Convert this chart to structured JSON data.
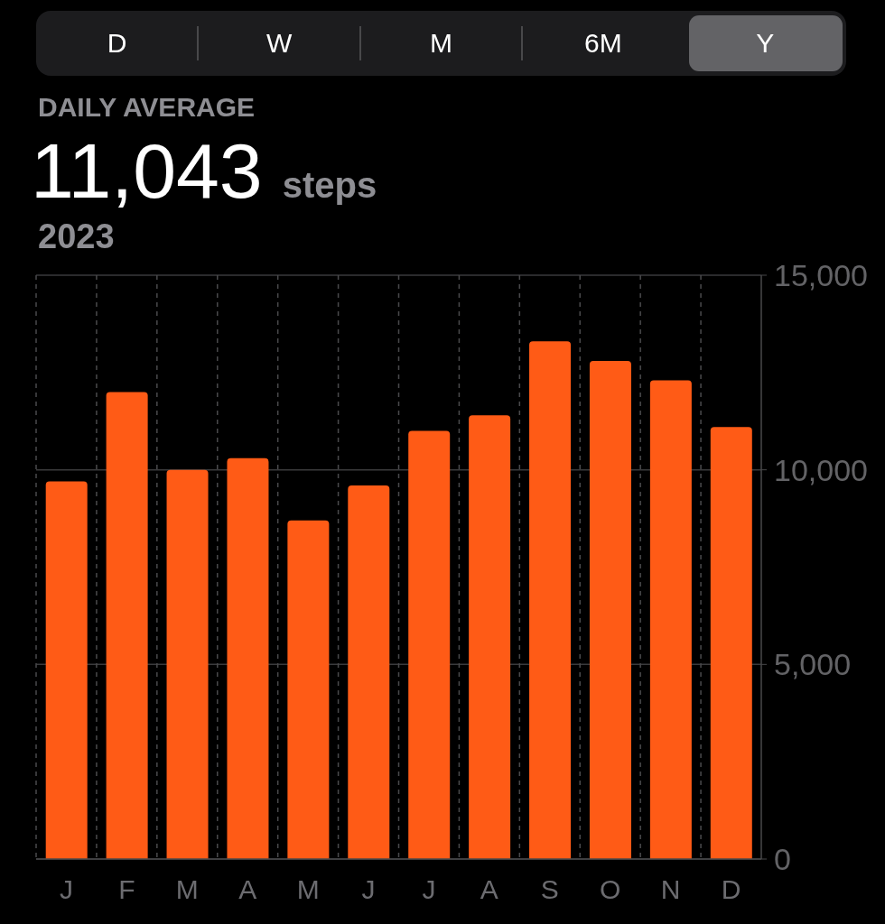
{
  "chart_data": {
    "type": "bar",
    "title": "DAILY AVERAGE",
    "subtitle": "2023",
    "annotations": [
      "D",
      "W",
      "M",
      "6M",
      "Y",
      "11,043",
      "steps"
    ],
    "categories": [
      "J",
      "F",
      "M",
      "A",
      "M",
      "J",
      "J",
      "A",
      "S",
      "O",
      "N",
      "D"
    ],
    "values": [
      9700,
      12000,
      10000,
      10300,
      8700,
      9600,
      11000,
      11400,
      13300,
      12800,
      12300,
      11100
    ],
    "color": "#ff5b16",
    "ylim": [
      0,
      15000
    ],
    "yticks": [
      0,
      {
        "value": 5000,
        "label": "5,000"
      },
      {
        "value": 10000,
        "label": "10,000"
      },
      {
        "value": 15000,
        "label": "15,000"
      }
    ],
    "grid": true
  }
}
